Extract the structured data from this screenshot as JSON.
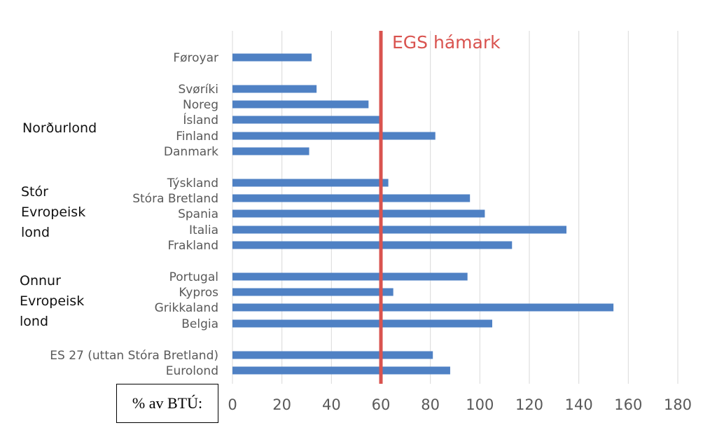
{
  "chart_data": {
    "type": "bar",
    "orientation": "horizontal",
    "categories": [
      "Føroyar",
      "Svøríki",
      "Noreg",
      "Ísland",
      "Finland",
      "Danmark",
      "Týskland",
      "Stóra Bretland",
      "Spania",
      "Italia",
      "Frakland",
      "Portugal",
      "Kypros",
      "Grikkaland",
      "Belgia",
      "ES 27 (uttan Stóra Bretland)",
      "Eurolond"
    ],
    "values": [
      32,
      34,
      55,
      60,
      82,
      31,
      63,
      96,
      102,
      135,
      113,
      95,
      65,
      154,
      105,
      81,
      88
    ],
    "groups": [
      {
        "label_lines": [
          "Norðurlond"
        ],
        "members": [
          "Svøríki",
          "Noreg",
          "Ísland",
          "Finland",
          "Danmark"
        ]
      },
      {
        "label_lines": [
          "Stór",
          "Evropeisk",
          "lond"
        ],
        "members": [
          "Týskland",
          "Stóra Bretland",
          "Spania",
          "Italia",
          "Frakland"
        ]
      },
      {
        "label_lines": [
          "Onnur",
          "Evropeisk",
          "lond"
        ],
        "members": [
          "Portugal",
          "Kypros",
          "Grikkaland",
          "Belgia"
        ]
      }
    ],
    "xlim": [
      0,
      180
    ],
    "xticks": [
      0,
      20,
      40,
      60,
      80,
      100,
      120,
      140,
      160,
      180
    ],
    "xlabel": "% av BTÚ:",
    "reference_line": {
      "value": 60,
      "label": "EGS hámark",
      "color": "#d9534f"
    },
    "bar_color": "#4f81c4",
    "grid": "vertical",
    "legend": "none"
  }
}
